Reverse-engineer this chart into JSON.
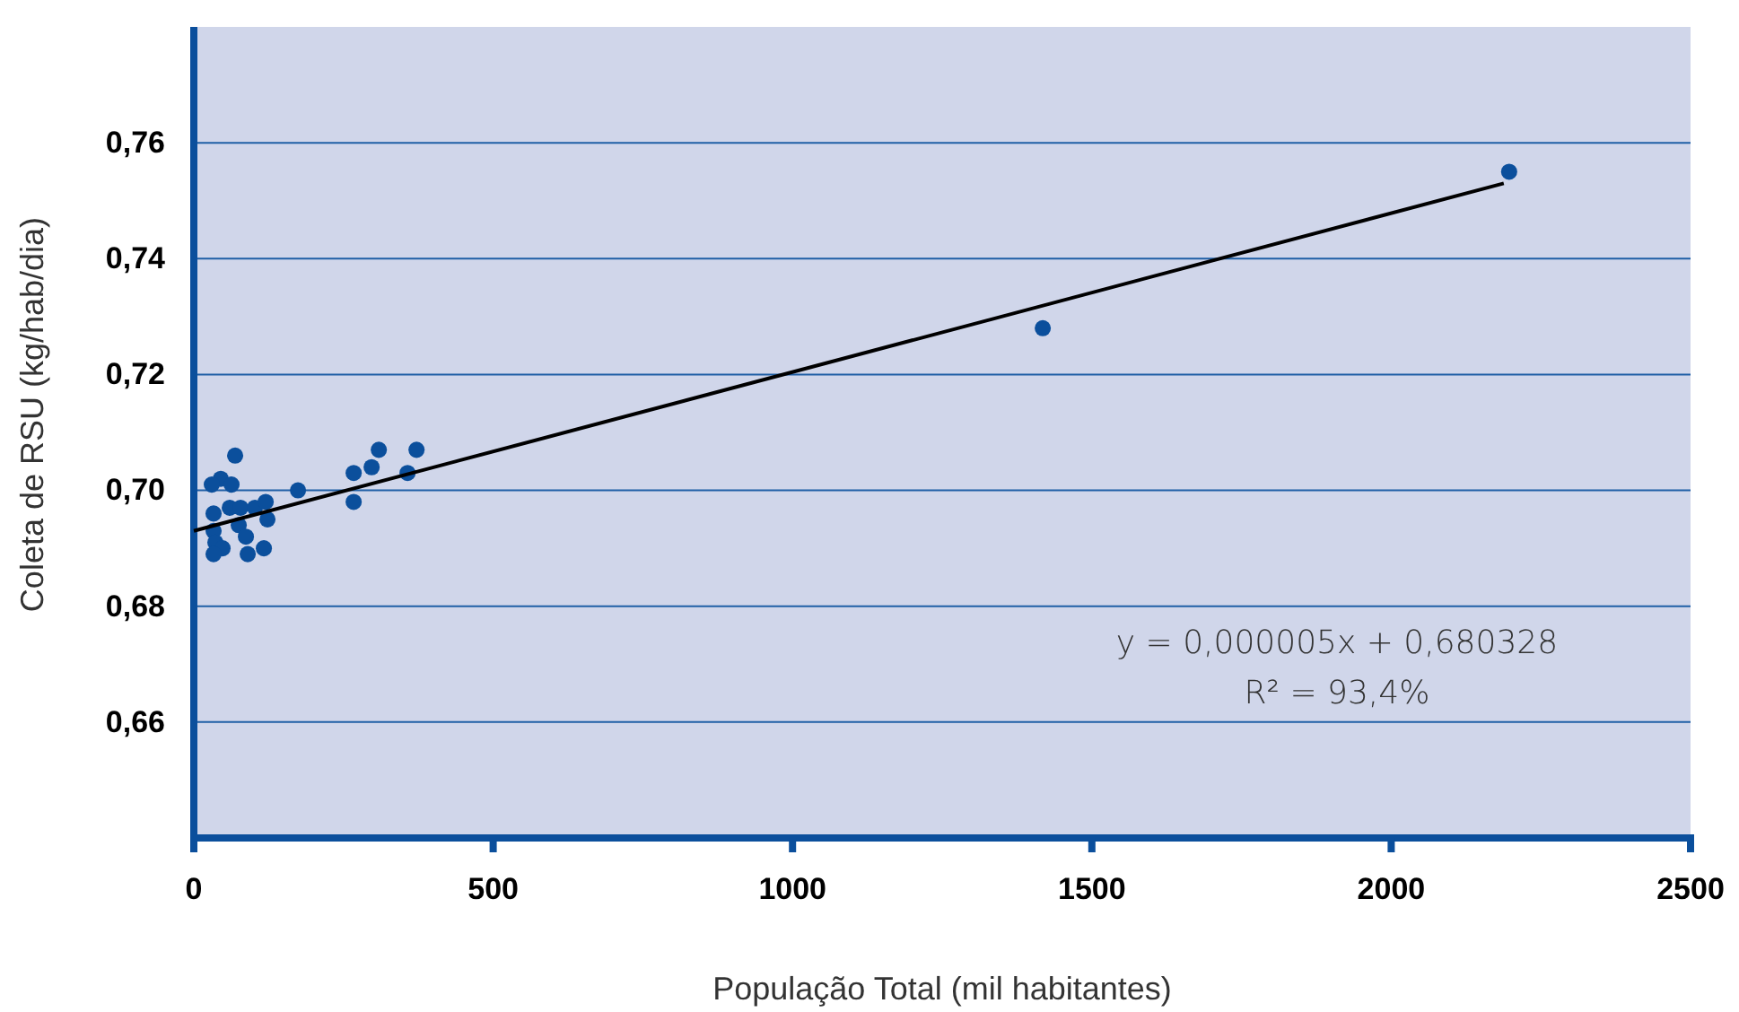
{
  "chart_data": {
    "type": "scatter",
    "xlabel": "População Total (mil habitantes)",
    "ylabel": "Coleta de RSU (kg/hab/dia)",
    "xlim": [
      0,
      2500
    ],
    "xticks": [
      0,
      500,
      1000,
      1500,
      2000,
      2500
    ],
    "ylim": [
      0.64,
      0.78
    ],
    "yticks": [
      {
        "value": 0.66,
        "label": "0,66"
      },
      {
        "value": 0.68,
        "label": "0,68"
      },
      {
        "value": 0.7,
        "label": "0,70"
      },
      {
        "value": 0.72,
        "label": "0,72"
      },
      {
        "value": 0.74,
        "label": "0,74"
      },
      {
        "value": 0.76,
        "label": "0,76"
      }
    ],
    "grid": "y",
    "series": [
      {
        "marker": "circle",
        "color": "#0b4f9c",
        "x": [
          69,
          45,
          30,
          63,
          33,
          60,
          78,
          102,
          120,
          123,
          75,
          33,
          87,
          36,
          48,
          33,
          90,
          117,
          174,
          267,
          267,
          297,
          309,
          357,
          372,
          1418,
          2197
        ],
        "values": [
          0.706,
          0.702,
          0.701,
          0.701,
          0.696,
          0.697,
          0.697,
          0.697,
          0.698,
          0.695,
          0.694,
          0.693,
          0.692,
          0.691,
          0.69,
          0.689,
          0.689,
          0.69,
          0.7,
          0.703,
          0.698,
          0.704,
          0.707,
          0.703,
          0.707,
          0.728,
          0.755
        ]
      },
      {
        "type": "line",
        "color": "#000000",
        "x": [
          0,
          2188
        ],
        "values": [
          0.693,
          0.753
        ]
      }
    ],
    "annotations": [
      "y = 0,000005x + 0,680328",
      "R² = 93,4%"
    ]
  }
}
